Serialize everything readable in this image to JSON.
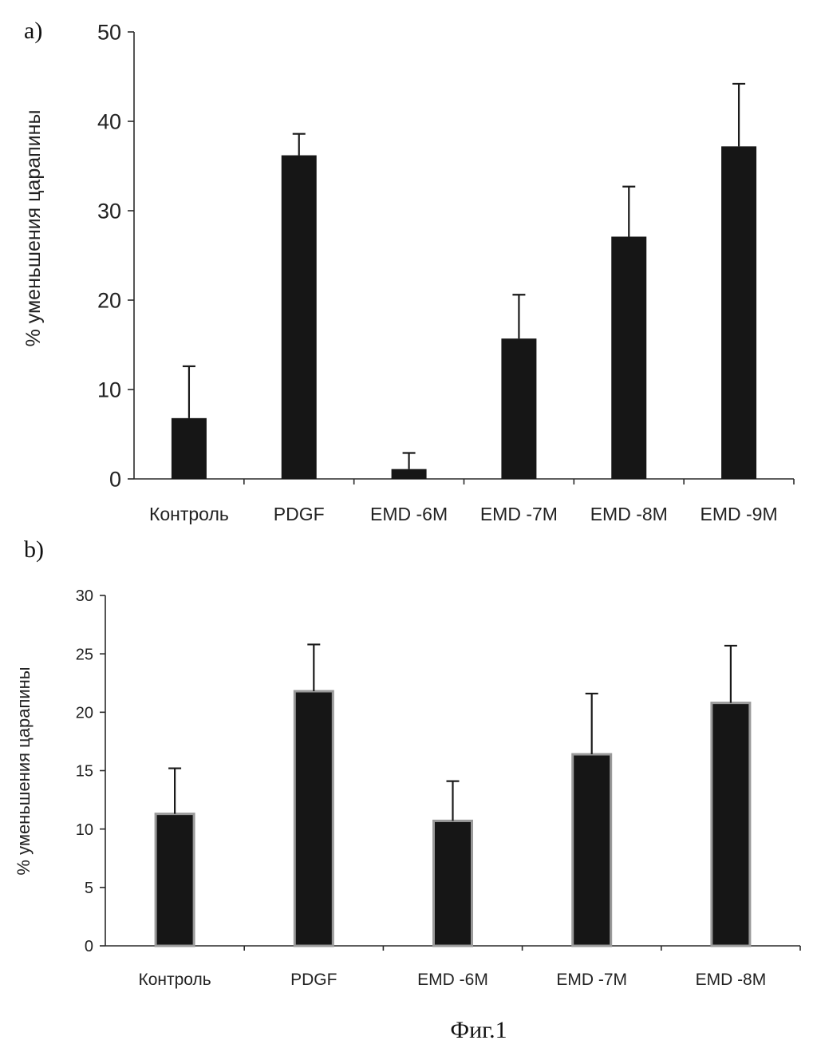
{
  "caption": "Фиг.1",
  "colors": {
    "bar_fill": "#161616",
    "bar_border_b": "#9a9a9a",
    "axis": "#2a2a2a",
    "text": "#222222"
  },
  "chart_data": [
    {
      "type": "bar",
      "panel_label": "a)",
      "ylabel": "% уменьшения царапины",
      "xlabel": "",
      "ylim": [
        0,
        50
      ],
      "yticks": [
        0,
        10,
        20,
        30,
        40,
        50
      ],
      "categories": [
        "Контроль",
        "PDGF",
        "EMD -6M",
        "EMD -7M",
        "EMD -8M",
        "EMD -9M"
      ],
      "values": [
        6.8,
        36.2,
        1.1,
        15.7,
        27.1,
        37.2
      ],
      "errors": [
        5.8,
        2.4,
        1.8,
        4.9,
        5.6,
        7.0
      ],
      "grid": false
    },
    {
      "type": "bar",
      "panel_label": "b)",
      "ylabel": "% уменьшения царапины",
      "xlabel": "",
      "ylim": [
        0,
        30
      ],
      "yticks": [
        0,
        5,
        10,
        15,
        20,
        25,
        30
      ],
      "categories": [
        "Контроль",
        "PDGF",
        "EMD -6M",
        "EMD -7M",
        "EMD -8M"
      ],
      "values": [
        11.3,
        21.8,
        10.7,
        16.4,
        20.8
      ],
      "errors": [
        3.9,
        4.0,
        3.4,
        5.2,
        4.9
      ],
      "grid": false
    }
  ]
}
